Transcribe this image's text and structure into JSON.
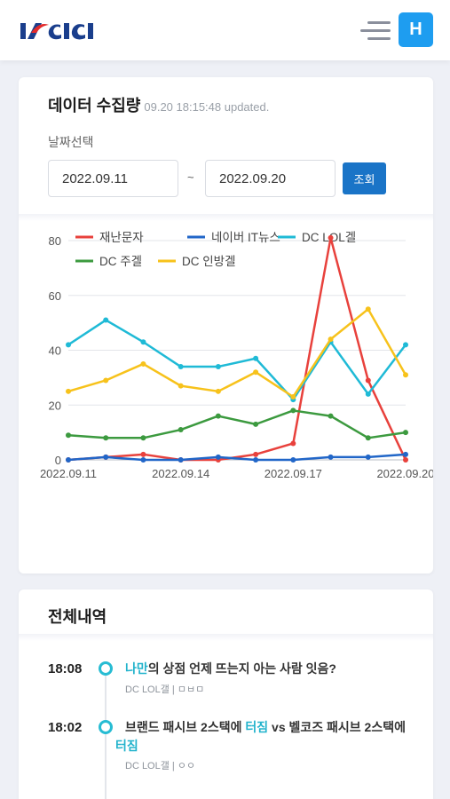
{
  "header": {
    "logo_text": "KICI",
    "avatar_label": "H"
  },
  "collection": {
    "title": "데이터 수집량",
    "updated": "09.20 18:15:48 updated.",
    "date_label": "날짜선택",
    "start_date": "2022.09.11",
    "end_date": "2022.09.20",
    "tilde": "~",
    "search_label": "조회"
  },
  "colors": {
    "accent": "#1e9df0",
    "button": "#1a74c7",
    "highlight": "#22b3cc"
  },
  "chart_data": {
    "type": "line",
    "x": [
      "2022.09.11",
      "2022.09.12",
      "2022.09.13",
      "2022.09.14",
      "2022.09.15",
      "2022.09.16",
      "2022.09.17",
      "2022.09.18",
      "2022.09.19",
      "2022.09.20"
    ],
    "x_tick_labels": [
      "2022.09.11",
      "2022.09.14",
      "2022.09.17",
      "2022.09.20"
    ],
    "ylim": [
      0,
      80
    ],
    "yticks": [
      0,
      20,
      40,
      60,
      80
    ],
    "grid": true,
    "legend_position": "top",
    "series": [
      {
        "name": "재난문자",
        "color": "#e8413c",
        "values": [
          0,
          1,
          2,
          0,
          0,
          2,
          6,
          81,
          29,
          0
        ]
      },
      {
        "name": "네이버 IT뉴스",
        "color": "#2166c8",
        "values": [
          0,
          1,
          0,
          0,
          1,
          0,
          0,
          1,
          1,
          2
        ]
      },
      {
        "name": "DC LOL겔",
        "color": "#1fbad6",
        "values": [
          42,
          51,
          43,
          34,
          34,
          37,
          22,
          43,
          24,
          42
        ]
      },
      {
        "name": "DC 주겔",
        "color": "#3c9a3f",
        "values": [
          9,
          8,
          8,
          11,
          16,
          13,
          18,
          16,
          8,
          10
        ]
      },
      {
        "name": "DC 인방겔",
        "color": "#f7c21b",
        "values": [
          25,
          29,
          35,
          27,
          25,
          32,
          23,
          44,
          55,
          31
        ]
      }
    ]
  },
  "history": {
    "title": "전체내역",
    "items": [
      {
        "time": "18:08",
        "title_highlight": "나만",
        "title_rest": "의 상점 언제 뜨는지 아는 사람 잇음?",
        "meta": "DC LOL갤 | ㅁㅂㅁ"
      },
      {
        "time": "18:02",
        "title_part1": "브랜드 패시브 2스택에 ",
        "title_highlight1": "터짐",
        "title_part2": " vs 벨코즈 패시브 2스택에 ",
        "title_highlight2": "터짐",
        "meta": "DC LOL갤 | ㅇㅇ"
      }
    ]
  }
}
